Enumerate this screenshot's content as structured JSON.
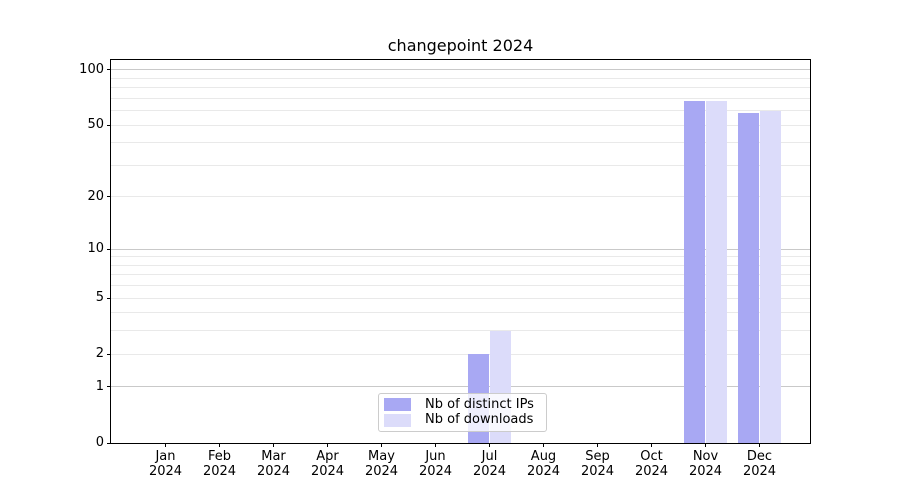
{
  "title": "changepoint 2024",
  "chart_data": {
    "type": "bar",
    "title": "changepoint 2024",
    "categories": [
      "Jan 2024",
      "Feb 2024",
      "Mar 2024",
      "Apr 2024",
      "May 2024",
      "Jun 2024",
      "Jul 2024",
      "Aug 2024",
      "Sep 2024",
      "Oct 2024",
      "Nov 2024",
      "Dec 2024"
    ],
    "series": [
      {
        "name": "Nb of distinct IPs",
        "color": "#a8a8f3",
        "values": [
          0,
          0,
          0,
          0,
          0,
          0,
          2,
          0,
          0,
          0,
          68,
          58
        ]
      },
      {
        "name": "Nb of downloads",
        "color": "#dcdcfa",
        "values": [
          0,
          0,
          0,
          0,
          0,
          0,
          3,
          0,
          0,
          0,
          68,
          60
        ]
      }
    ],
    "yscale": "log1p",
    "ylim": [
      0,
      113
    ],
    "yticks": [
      0,
      1,
      2,
      5,
      10,
      20,
      50,
      100
    ],
    "ytick_labels": [
      "0",
      "1",
      "2",
      "5",
      "10",
      "20",
      "50",
      "100"
    ],
    "major_gridlines": [
      1,
      10,
      100
    ],
    "minor_gridlines": [
      2,
      3,
      4,
      5,
      6,
      7,
      8,
      9,
      20,
      30,
      40,
      50,
      60,
      70,
      80,
      90
    ],
    "grid": "horizontal",
    "legend_position": "lower center",
    "colors": {
      "grid_major": "#c9c9c9",
      "grid_minor": "#e9e9e9",
      "axis": "#000000",
      "background": "#ffffff"
    }
  },
  "legend": {
    "items": [
      {
        "label": "Nb of distinct IPs",
        "color": "#a8a8f3"
      },
      {
        "label": "Nb of downloads",
        "color": "#dcdcfa"
      }
    ]
  }
}
